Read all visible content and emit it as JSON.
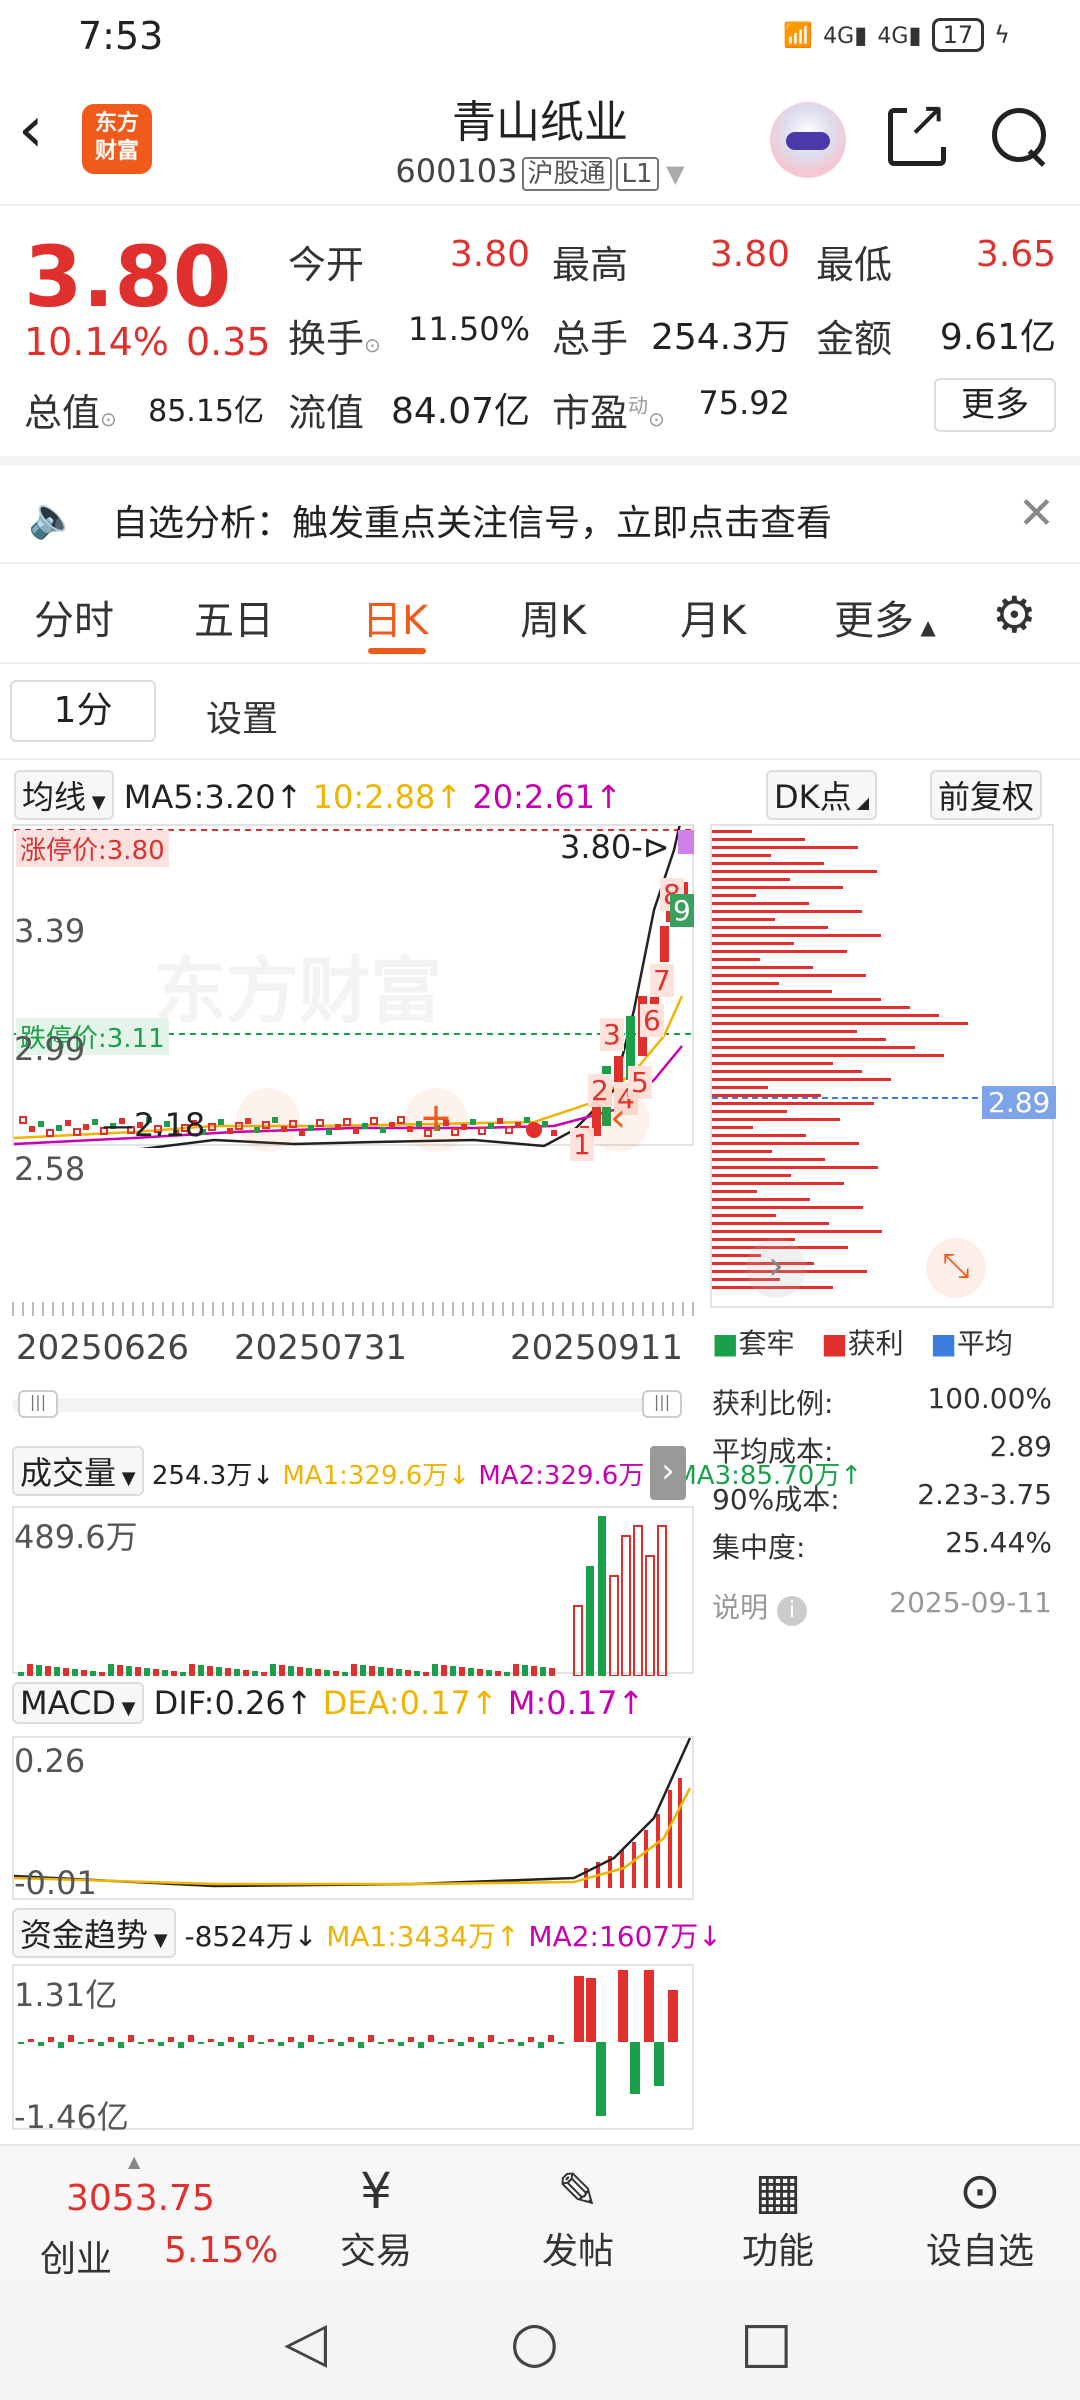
{
  "status": {
    "time": "7:53",
    "battery": "17",
    "net1": "4G",
    "net2": "4G"
  },
  "header": {
    "back": "‹",
    "logo_line1": "东方",
    "logo_line2": "财富",
    "name": "青山纸业",
    "code": "600103",
    "tag1": "沪股通",
    "tag2": "L1"
  },
  "quote": {
    "price": "3.80",
    "change_pct": "10.14%",
    "change": "0.35",
    "open_label": "今开",
    "open": "3.80",
    "high_label": "最高",
    "high": "3.80",
    "low_label": "最低",
    "low": "3.65",
    "turnover_label": "换手",
    "turnover": "11.50%",
    "volume_label": "总手",
    "volume": "254.3万",
    "amount_label": "金额",
    "amount": "9.61亿",
    "mcap_label": "总值",
    "mcap": "85.15亿",
    "float_label": "流值",
    "float": "84.07亿",
    "pe_label": "市盈",
    "pe_sup": "动",
    "pe": "75.92",
    "more": "更多"
  },
  "alert": {
    "text": "自选分析：触发重点关注信号，立即点击查看"
  },
  "tabs": [
    "分时",
    "五日",
    "日K",
    "周K",
    "月K",
    "更多"
  ],
  "active_tab": "日K",
  "subbar": {
    "period": "1分",
    "settings": "设置"
  },
  "kline": {
    "ma_selector": "均线",
    "ma5": "MA5:3.20↑",
    "ma10": "10:2.88↑",
    "ma20": "20:2.61↑",
    "dk": "DK点",
    "adjust": "前复权",
    "limit_up": "涨停价:3.80",
    "limit_down": "跌停价:3.11",
    "last_price_tag": "3.80",
    "y_ticks": [
      "3.39",
      "2.99",
      "2.58"
    ],
    "low_mark": "2.18",
    "dates": [
      "20250626",
      "20250731",
      "20250911"
    ],
    "watermark": "东方财富",
    "markers": [
      "1",
      "2",
      "3",
      "4",
      "5",
      "6",
      "7",
      "8",
      "9"
    ]
  },
  "chip": {
    "avg_tag": "2.89",
    "legend": [
      "套牢",
      "获利",
      "平均"
    ],
    "rows": [
      {
        "label": "获利比例:",
        "value": "100.00%"
      },
      {
        "label": "平均成本:",
        "value": "2.89"
      },
      {
        "label": "90%成本:",
        "value": "2.23-3.75"
      },
      {
        "label": "集中度:",
        "value": "25.44%"
      }
    ],
    "note_label": "说明",
    "date": "2025-09-11"
  },
  "volume": {
    "selector": "成交量",
    "v": "254.3万↓",
    "ma1": "MA1:329.6万↓",
    "ma2": "MA2:329.6万↓",
    "ma3": "MA3:85.70万↑",
    "ymax": "489.6万"
  },
  "macd": {
    "selector": "MACD",
    "dif": "DIF:0.26↑",
    "dea": "DEA:0.17↑",
    "m": "M:0.17↑",
    "ymax": "0.26",
    "ymin": "-0.01"
  },
  "fund": {
    "selector": "资金趋势",
    "v": "-8524万↓",
    "ma1": "MA1:3434万↑",
    "ma2": "MA2:1607万↓",
    "ymax": "1.31亿",
    "ymin": "-1.46亿"
  },
  "bottomnav": {
    "index_value": "3053.75",
    "index_name": "创业",
    "index_pct": "5.15%",
    "items": [
      "交易",
      "发帖",
      "功能",
      "设自选"
    ]
  },
  "colors": {
    "up": "#e0302e",
    "down": "#1aa04a",
    "accent": "#f05a1a",
    "ma5": "#222222",
    "ma10": "#f0b400",
    "ma20": "#c800b4"
  }
}
